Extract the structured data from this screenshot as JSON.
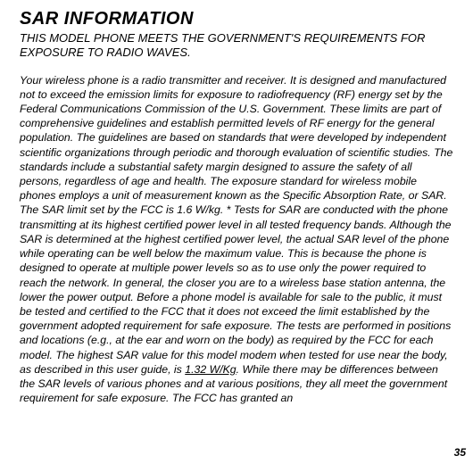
{
  "title": "SAR INFORMATION",
  "subtitle": "THIS MODEL PHONE MEETS THE GOVERNMENT'S REQUIREMENTS FOR EXPOSURE TO RADIO WAVES.",
  "body_before": "Your wireless phone is a radio transmitter and receiver. It is designed and manufactured not to exceed the emission limits for exposure to radiofrequency (RF) energy set by the Federal Communications Commission of the U.S. Government. These limits are part of comprehensive guidelines and establish permitted levels of RF energy for the general population. The guidelines are based on standards that were developed by independent scientific organizations through periodic and thorough evaluation of scientific studies. The standards include a substantial safety margin designed to assure the safety of all persons, regardless of age and health. The exposure standard for wireless mobile phones employs a unit of measurement known as the Specific Absorption Rate, or SAR. The SAR limit set by the FCC is 1.6 W/kg. * Tests for SAR are conducted with the phone transmitting at its highest certified power level in all tested frequency bands. Although the SAR is determined at the highest certified power level, the actual SAR level of the phone while operating can be well below the maximum value. This is because the phone is designed to operate at multiple power levels so as to use only the power required to reach the network. In general, the closer you are to a wireless base station antenna, the lower the power output. Before a phone model is available for sale to the public, it must be tested and certified to the FCC that it does not exceed the limit established by the government adopted requirement for safe exposure. The tests are performed in positions and locations (e.g., at the ear and worn on the body) as required by the FCC for each model. The highest SAR value for this model modem when tested for use near the body, as described in this user guide, is ",
  "sar_value": "1.32 W/Kg",
  "body_after": ". While there may be differences between the SAR levels of various phones and at various positions, they all meet the government requirement for safe exposure. The FCC has granted an",
  "page_number": "35"
}
